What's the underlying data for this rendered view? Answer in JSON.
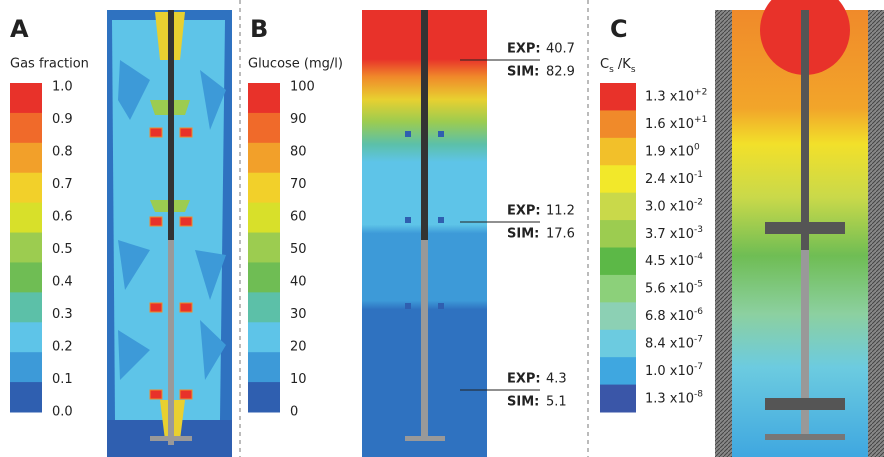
{
  "panels": [
    {
      "letter": "A",
      "legend_title": "Gas fraction",
      "ticks": [
        "1.0",
        "0.9",
        "0.8",
        "0.7",
        "0.6",
        "0.5",
        "0.4",
        "0.3",
        "0.2",
        "0.1",
        "0.0"
      ]
    },
    {
      "letter": "B",
      "legend_title": "Glucose (mg/l)",
      "ticks": [
        "100",
        "90",
        "80",
        "70",
        "60",
        "50",
        "40",
        "30",
        "20",
        "10",
        "0"
      ],
      "annotations": [
        {
          "exp_label": "EXP:",
          "exp": "40.7",
          "sim_label": "SIM:",
          "sim": "82.9"
        },
        {
          "exp_label": "EXP:",
          "exp": "11.2",
          "sim_label": "SIM:",
          "sim": "17.6"
        },
        {
          "exp_label": "EXP:",
          "exp": "4.3",
          "sim_label": "SIM:",
          "sim": "5.1"
        }
      ]
    },
    {
      "letter": "C",
      "legend_title": {
        "c": "C",
        "c_sub": "s",
        "k": " /K",
        "k_sub": "s"
      },
      "ticks": [
        {
          "base": "1.3 x10",
          "exp": "+2"
        },
        {
          "base": "1.6 x10",
          "exp": "+1"
        },
        {
          "base": "1.9 x10",
          "exp": "0"
        },
        {
          "base": "2.4 x10",
          "exp": "-1"
        },
        {
          "base": "3.0 x10",
          "exp": "-2"
        },
        {
          "base": "3.7 x10",
          "exp": "-3"
        },
        {
          "base": "4.5 x10",
          "exp": "-4"
        },
        {
          "base": "5.6 x10",
          "exp": "-5"
        },
        {
          "base": "6.8 x10",
          "exp": "-6"
        },
        {
          "base": "8.4 x10",
          "exp": "-7"
        },
        {
          "base": "1.0 x10",
          "exp": "-7"
        },
        {
          "base": "1.3 x10",
          "exp": "-8"
        }
      ]
    }
  ]
}
